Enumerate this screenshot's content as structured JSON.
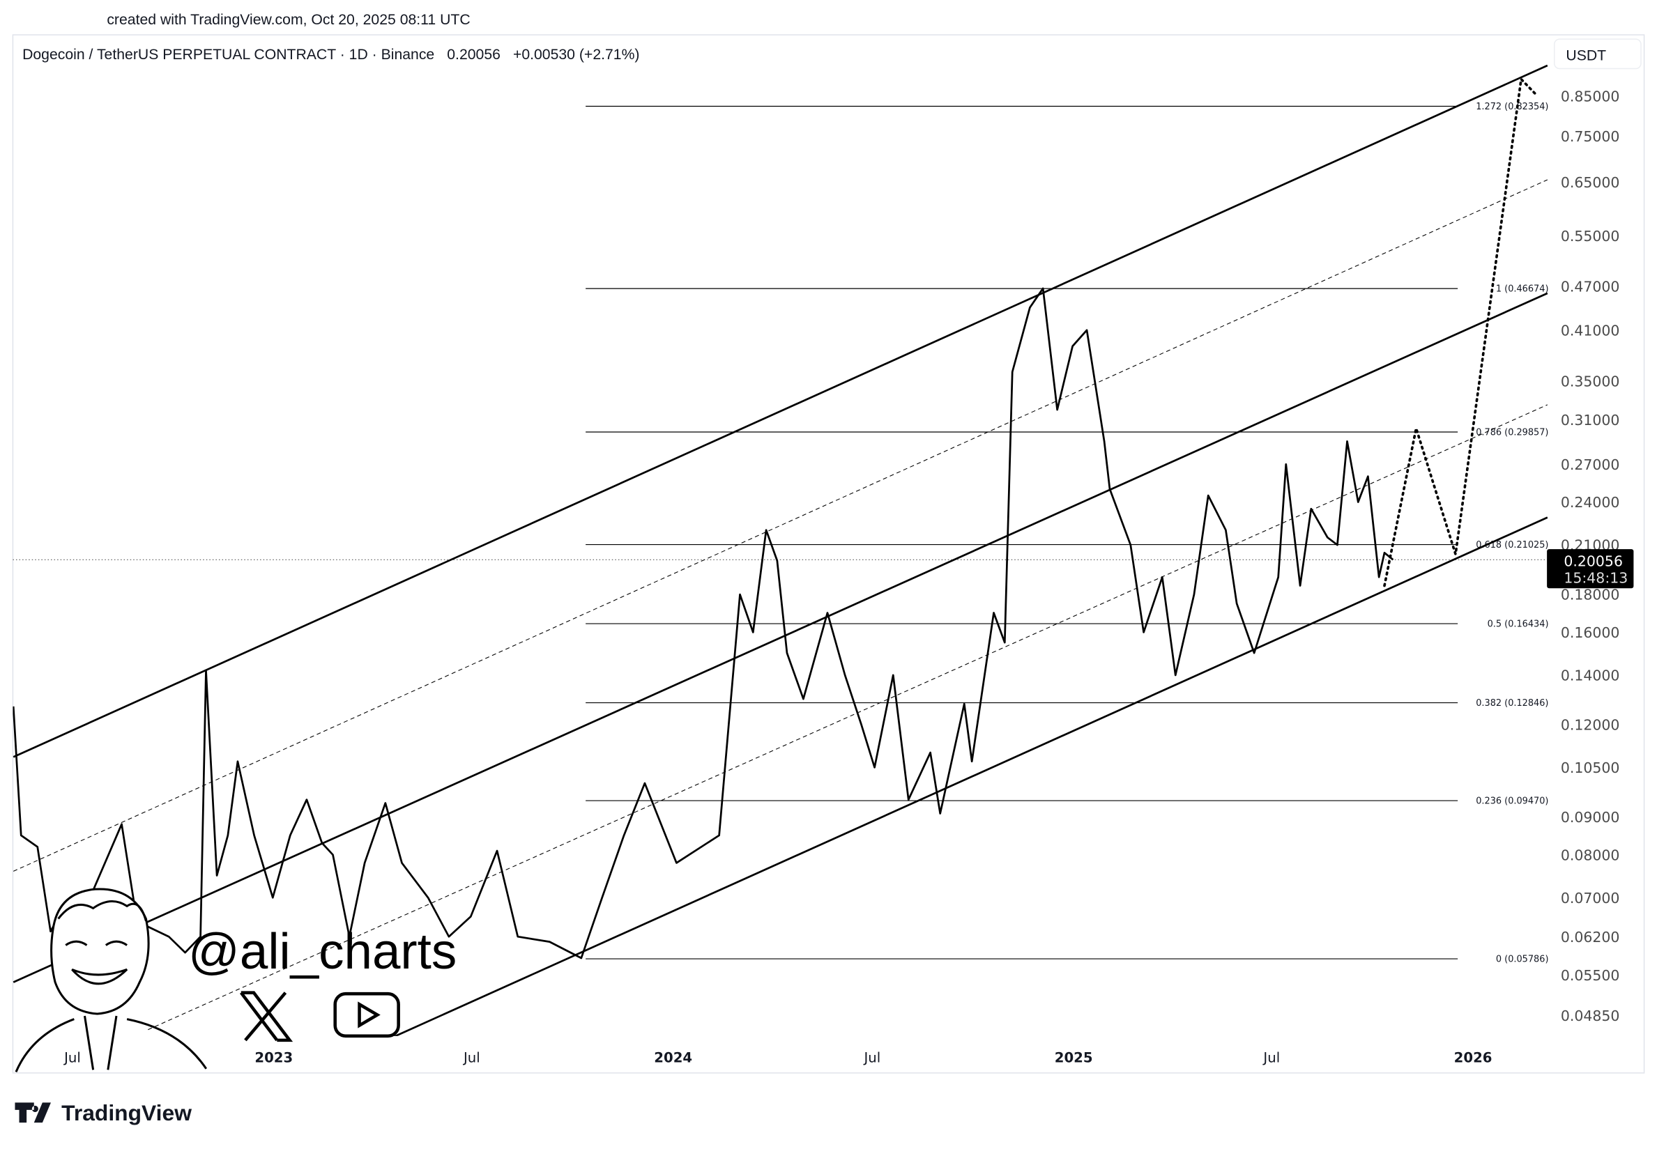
{
  "credit": "created with TradingView.com, Oct 20, 2025 08:11 UTC",
  "header": {
    "symbol": "Dogecoin / TetherUS PERPETUAL CONTRACT · 1D · Binance",
    "price": "0.20056",
    "change": "+0.00530 (+2.71%)"
  },
  "currency_button": "USDT",
  "last_price_badge": {
    "price": "0.20056",
    "countdown": "15:48:13"
  },
  "watermark": {
    "handle": "@ali_charts",
    "icons": [
      "x-logo-icon",
      "youtube-icon",
      "avatar-cartoon"
    ]
  },
  "footer_logo": "TradingView",
  "colors": {
    "line": "#000000",
    "badge": "#000000",
    "axis_text": "#4a4a4a",
    "border": "#e0e3eb"
  },
  "chart_data": {
    "type": "line",
    "title": "Dogecoin / TetherUS PERPETUAL CONTRACT · 1D · Binance",
    "y_scale": "log",
    "ylim": [
      0.0455,
      0.95
    ],
    "xlim": [
      "2022-05-08",
      "2026-03-10"
    ],
    "grid": false,
    "y_ticks": [
      "0.85000",
      "0.75000",
      "0.65000",
      "0.55000",
      "0.47000",
      "0.41000",
      "0.35000",
      "0.31000",
      "0.27000",
      "0.24000",
      "0.21000",
      "0.18000",
      "0.16000",
      "0.14000",
      "0.12000",
      "0.10500",
      "0.09000",
      "0.08000",
      "0.07000",
      "0.06200",
      "0.05500",
      "0.04850"
    ],
    "x_ticks": [
      {
        "label": "Jul",
        "date": "2022-07-01",
        "bold": false
      },
      {
        "label": "2023",
        "date": "2023-01-01",
        "bold": true
      },
      {
        "label": "Jul",
        "date": "2023-07-01",
        "bold": false
      },
      {
        "label": "2024",
        "date": "2024-01-01",
        "bold": true
      },
      {
        "label": "Jul",
        "date": "2024-07-01",
        "bold": false
      },
      {
        "label": "2025",
        "date": "2025-01-01",
        "bold": true
      },
      {
        "label": "Jul",
        "date": "2025-07-01",
        "bold": false
      },
      {
        "label": "2026",
        "date": "2026-01-01",
        "bold": true
      }
    ],
    "series": [
      {
        "points": [
          [
            "2022-05-08",
            0.127
          ],
          [
            "2022-05-15",
            0.085
          ],
          [
            "2022-05-30",
            0.082
          ],
          [
            "2022-06-11",
            0.063
          ],
          [
            "2022-06-23",
            0.068
          ],
          [
            "2022-07-17",
            0.07
          ],
          [
            "2022-08-15",
            0.088
          ],
          [
            "2022-08-29",
            0.065
          ],
          [
            "2022-09-27",
            0.062
          ],
          [
            "2022-10-12",
            0.059
          ],
          [
            "2022-10-26",
            0.062
          ],
          [
            "2022-10-31",
            0.142
          ],
          [
            "2022-11-10",
            0.075
          ],
          [
            "2022-11-20",
            0.085
          ],
          [
            "2022-11-29",
            0.107
          ],
          [
            "2022-12-14",
            0.085
          ],
          [
            "2022-12-31",
            0.07
          ],
          [
            "2023-01-16",
            0.085
          ],
          [
            "2023-01-31",
            0.095
          ],
          [
            "2023-02-14",
            0.083
          ],
          [
            "2023-02-24",
            0.08
          ],
          [
            "2023-03-11",
            0.062
          ],
          [
            "2023-03-25",
            0.078
          ],
          [
            "2023-04-13",
            0.094
          ],
          [
            "2023-04-28",
            0.078
          ],
          [
            "2023-05-22",
            0.07
          ],
          [
            "2023-06-10",
            0.062
          ],
          [
            "2023-06-30",
            0.066
          ],
          [
            "2023-07-24",
            0.081
          ],
          [
            "2023-08-12",
            0.062
          ],
          [
            "2023-09-10",
            0.061
          ],
          [
            "2023-10-09",
            0.058
          ],
          [
            "2023-10-28",
            0.07
          ],
          [
            "2023-11-17",
            0.085
          ],
          [
            "2023-12-06",
            0.1
          ],
          [
            "2024-01-04",
            0.078
          ],
          [
            "2024-02-12",
            0.085
          ],
          [
            "2024-03-02",
            0.18
          ],
          [
            "2024-03-14",
            0.16
          ],
          [
            "2024-03-26",
            0.22
          ],
          [
            "2024-04-05",
            0.2
          ],
          [
            "2024-04-14",
            0.15
          ],
          [
            "2024-04-29",
            0.13
          ],
          [
            "2024-05-21",
            0.17
          ],
          [
            "2024-06-06",
            0.14
          ],
          [
            "2024-06-21",
            0.12
          ],
          [
            "2024-07-03",
            0.105
          ],
          [
            "2024-07-20",
            0.14
          ],
          [
            "2024-08-03",
            0.095
          ],
          [
            "2024-08-23",
            0.11
          ],
          [
            "2024-09-01",
            0.091
          ],
          [
            "2024-09-23",
            0.128
          ],
          [
            "2024-09-30",
            0.107
          ],
          [
            "2024-10-20",
            0.17
          ],
          [
            "2024-10-30",
            0.155
          ],
          [
            "2024-11-06",
            0.36
          ],
          [
            "2024-11-22",
            0.44
          ],
          [
            "2024-12-04",
            0.467
          ],
          [
            "2024-12-17",
            0.32
          ],
          [
            "2024-12-31",
            0.39
          ],
          [
            "2025-01-13",
            0.41
          ],
          [
            "2025-01-29",
            0.29
          ],
          [
            "2025-02-03",
            0.25
          ],
          [
            "2025-02-22",
            0.21
          ],
          [
            "2025-03-06",
            0.16
          ],
          [
            "2025-03-23",
            0.19
          ],
          [
            "2025-04-04",
            0.14
          ],
          [
            "2025-04-21",
            0.18
          ],
          [
            "2025-05-04",
            0.245
          ],
          [
            "2025-05-20",
            0.22
          ],
          [
            "2025-05-30",
            0.175
          ],
          [
            "2025-06-15",
            0.15
          ],
          [
            "2025-07-07",
            0.19
          ],
          [
            "2025-07-14",
            0.27
          ],
          [
            "2025-07-27",
            0.185
          ],
          [
            "2025-08-06",
            0.235
          ],
          [
            "2025-08-21",
            0.215
          ],
          [
            "2025-08-30",
            0.21
          ],
          [
            "2025-09-08",
            0.29
          ],
          [
            "2025-09-18",
            0.24
          ],
          [
            "2025-09-27",
            0.26
          ],
          [
            "2025-10-07",
            0.19
          ],
          [
            "2025-10-12",
            0.205
          ],
          [
            "2025-10-20",
            0.20056
          ]
        ]
      }
    ],
    "last_price": 0.20056,
    "fibonacci": {
      "start": "2023-10-13",
      "end": "2025-12-18",
      "levels": [
        {
          "label": "1.272 (0.82354)",
          "value": 0.82354
        },
        {
          "label": "1 (0.46674)",
          "value": 0.46674
        },
        {
          "label": "0.786 (0.29857)",
          "value": 0.29857
        },
        {
          "label": "0.618 (0.21025)",
          "value": 0.21025
        },
        {
          "label": "0.5 (0.16434)",
          "value": 0.16434
        },
        {
          "label": "0.382 (0.12846)",
          "value": 0.12846
        },
        {
          "label": "0.236 (0.09470)",
          "value": 0.0947
        },
        {
          "label": "0 (0.05786)",
          "value": 0.05786
        }
      ]
    },
    "channel_lines": [
      {
        "style": "solid",
        "from": [
          "2022-05-08",
          0.1085
        ],
        "to": [
          "2026-03-10",
          0.935
        ]
      },
      {
        "style": "solid",
        "from": [
          "2022-05-08",
          0.0538
        ],
        "to": [
          "2026-03-10",
          0.46
        ]
      },
      {
        "style": "solid",
        "from": [
          "2023-04-18",
          0.0452
        ],
        "to": [
          "2026-03-10",
          0.2288
        ]
      },
      {
        "style": "dashed",
        "from": [
          "2022-05-08",
          0.076
        ],
        "to": [
          "2026-03-10",
          0.655
        ]
      },
      {
        "style": "dashed",
        "from": [
          "2022-09-08",
          0.0464
        ],
        "to": [
          "2026-03-10",
          0.325
        ]
      }
    ],
    "projection": [
      [
        "2025-10-12",
        0.185
      ],
      [
        "2025-11-10",
        0.302
      ],
      [
        "2025-12-16",
        0.204
      ],
      [
        "2026-02-14",
        0.896
      ],
      [
        "2026-03-01",
        0.85
      ]
    ]
  }
}
